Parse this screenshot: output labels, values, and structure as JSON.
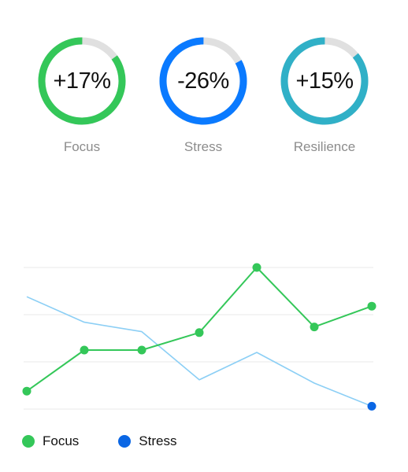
{
  "rings": [
    {
      "value": "+17%",
      "label": "Focus",
      "progress": 0.85,
      "color": "#34c759",
      "track": "#e0e0e0"
    },
    {
      "value": "-26%",
      "label": "Stress",
      "progress": 0.83,
      "color": "#0a7aff",
      "track": "#e0e0e0"
    },
    {
      "value": "+15%",
      "label": "Resilience",
      "progress": 0.86,
      "color": "#30b0c7",
      "track": "#e0e0e0"
    }
  ],
  "chart_data": {
    "type": "line",
    "x": [
      1,
      2,
      3,
      4,
      5,
      6,
      7
    ],
    "ylim": [
      0,
      4
    ],
    "grid": true,
    "legend_placement": "bottom-left",
    "series": [
      {
        "name": "Focus",
        "color": "#34c759",
        "markers": "all",
        "values": [
          0.38,
          1.25,
          1.25,
          1.62,
          3.0,
          1.74,
          2.18
        ]
      },
      {
        "name": "Stress",
        "color": "#8ccff5",
        "markers": "last",
        "marker_color": "#0a66e4",
        "values": [
          2.38,
          1.84,
          1.64,
          0.62,
          1.2,
          0.55,
          0.06
        ]
      }
    ]
  },
  "legend": [
    {
      "label": "Focus",
      "color": "#34c759"
    },
    {
      "label": "Stress",
      "color": "#0a66e4"
    }
  ]
}
